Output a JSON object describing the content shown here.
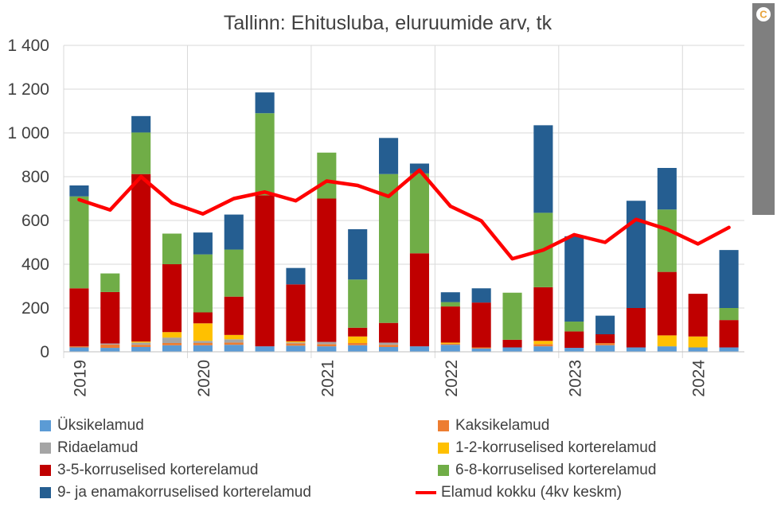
{
  "chart_data": {
    "type": "bar",
    "stacked": true,
    "title": "Tallinn: Ehitusluba, eluruumide arv, tk",
    "xlabel": "",
    "ylabel": "",
    "ylim": [
      0,
      1400
    ],
    "yticks": [
      0,
      200,
      400,
      600,
      800,
      1000,
      1200,
      1400
    ],
    "ytick_labels": [
      "0",
      "200",
      "400",
      "600",
      "800",
      "1 000",
      "1 200",
      "1 400"
    ],
    "year_labels": [
      "2019",
      "2020",
      "2021",
      "2022",
      "2023",
      "2024"
    ],
    "categories": [
      "2019Q1",
      "2019Q2",
      "2019Q3",
      "2019Q4",
      "2020Q1",
      "2020Q2",
      "2020Q3",
      "2020Q4",
      "2021Q1",
      "2021Q2",
      "2021Q3",
      "2021Q4",
      "2022Q1",
      "2022Q2",
      "2022Q3",
      "2022Q4",
      "2023Q1",
      "2023Q2",
      "2023Q3",
      "2023Q4",
      "2024Q1",
      "2024Q2"
    ],
    "series": [
      {
        "name": "Üksikelamud",
        "kind": "bar",
        "color": "#5b9bd5",
        "values": [
          20,
          18,
          22,
          30,
          30,
          32,
          25,
          28,
          25,
          30,
          22,
          25,
          32,
          15,
          20,
          25,
          18,
          30,
          20,
          25,
          20,
          20
        ]
      },
      {
        "name": "Kaksikelamud",
        "kind": "bar",
        "color": "#ed7d31",
        "values": [
          5,
          15,
          10,
          10,
          10,
          10,
          0,
          10,
          10,
          10,
          10,
          0,
          5,
          5,
          0,
          10,
          0,
          10,
          0,
          0,
          0,
          0
        ]
      },
      {
        "name": "Ridaelamud",
        "kind": "bar",
        "color": "#a5a5a5",
        "values": [
          0,
          5,
          10,
          25,
          10,
          15,
          0,
          5,
          10,
          0,
          10,
          0,
          0,
          0,
          0,
          0,
          0,
          0,
          0,
          0,
          0,
          0
        ]
      },
      {
        "name": "1-2-korruselised korterelamud",
        "kind": "bar",
        "color": "#ffc000",
        "values": [
          0,
          0,
          5,
          25,
          80,
          20,
          0,
          5,
          0,
          30,
          0,
          0,
          5,
          0,
          0,
          15,
          0,
          0,
          0,
          50,
          50,
          0
        ]
      },
      {
        "name": "3-5-korruselised korterelamud",
        "kind": "bar",
        "color": "#c00000",
        "values": [
          265,
          235,
          765,
          310,
          50,
          175,
          690,
          260,
          655,
          40,
          90,
          425,
          165,
          205,
          35,
          245,
          75,
          40,
          180,
          290,
          195,
          125
        ]
      },
      {
        "name": "6-8-korruselised korterelamud",
        "kind": "bar",
        "color": "#70ad47",
        "values": [
          420,
          85,
          190,
          140,
          265,
          215,
          375,
          0,
          210,
          220,
          680,
          365,
          20,
          0,
          215,
          340,
          45,
          0,
          0,
          285,
          0,
          55
        ]
      },
      {
        "name": "9- ja enamakorruselised korterelamud",
        "kind": "bar",
        "color": "#255e91",
        "values": [
          50,
          0,
          75,
          0,
          100,
          160,
          95,
          75,
          0,
          230,
          165,
          45,
          45,
          65,
          0,
          400,
          390,
          85,
          490,
          190,
          0,
          265
        ]
      },
      {
        "name": "Elamud kokku (4kv keskm)",
        "kind": "line",
        "color": "#ff0000",
        "values": [
          695,
          648,
          800,
          680,
          630,
          700,
          730,
          690,
          780,
          760,
          710,
          830,
          665,
          598,
          425,
          465,
          535,
          500,
          605,
          560,
          493,
          568
        ]
      }
    ]
  }
}
